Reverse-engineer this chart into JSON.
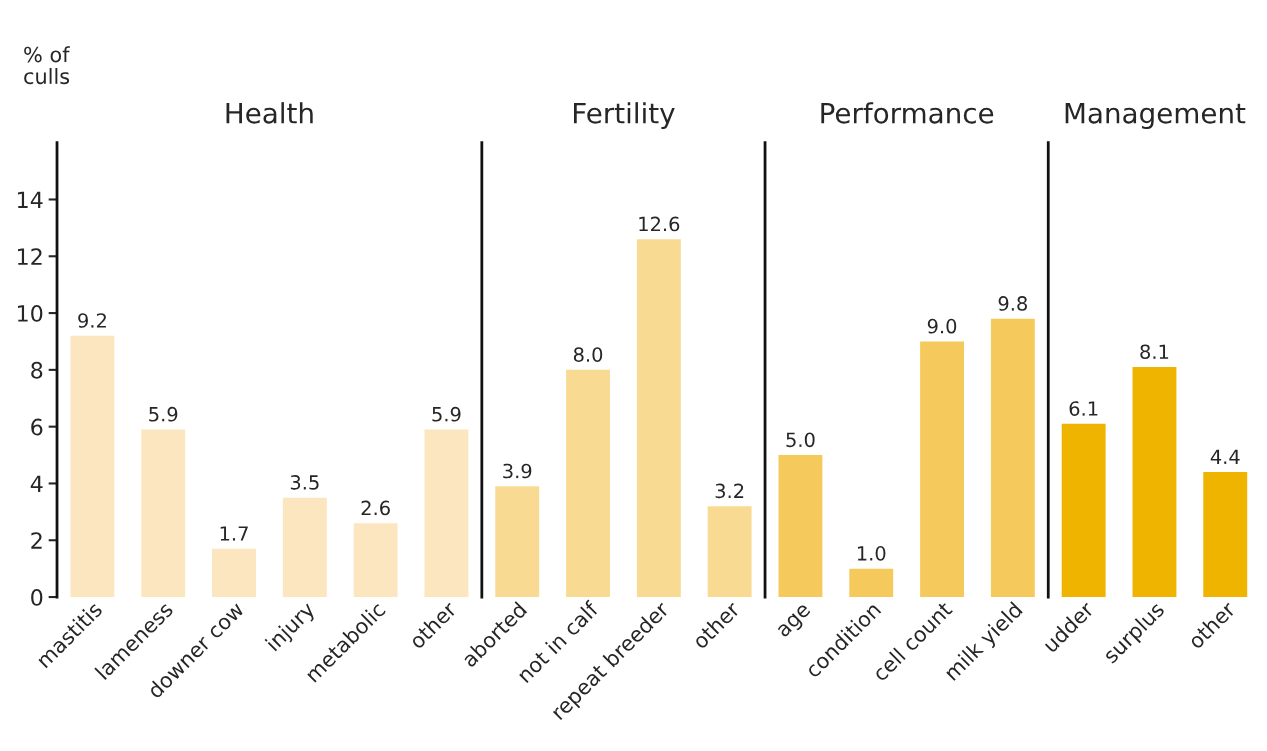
{
  "chart_data": [
    {
      "type": "bar",
      "title": "Health",
      "ylabel": "% of\nculls",
      "categories": [
        "mastitis",
        "lameness",
        "downer cow",
        "injury",
        "metabolic",
        "other"
      ],
      "values": [
        9.2,
        5.9,
        1.7,
        3.5,
        2.6,
        5.9
      ],
      "value_labels": [
        "9.2",
        "5.9",
        "1.7",
        "3.5",
        "2.6",
        "5.9"
      ],
      "color": "#fce6bf",
      "ylim": [
        0,
        16
      ],
      "yticks": [
        0,
        2,
        4,
        6,
        8,
        10,
        12,
        14
      ],
      "grid": false
    },
    {
      "type": "bar",
      "title": "Fertility",
      "categories": [
        "aborted",
        "not in calf",
        "repeat breeder",
        "other"
      ],
      "values": [
        3.9,
        8,
        12.6,
        3.2
      ],
      "value_labels": [
        "3.9",
        "8.0",
        "12.6",
        "3.2"
      ],
      "color": "#f8da92",
      "ylim": [
        0,
        16
      ],
      "tick_labels": "x",
      "grid": false
    },
    {
      "type": "bar",
      "title": "Performance",
      "categories": [
        "age",
        "condition",
        "cell count",
        "milk yield"
      ],
      "values": [
        5,
        1,
        9,
        9.8
      ],
      "value_labels": [
        "5.0",
        "1.0",
        "9.0",
        "9.8"
      ],
      "color": "#f5c95c",
      "ylim": [
        0,
        16
      ],
      "tick_labels": "x",
      "grid": false
    },
    {
      "type": "bar",
      "title": "Management",
      "categories": [
        "udder",
        "surplus",
        "other"
      ],
      "values": [
        6.1,
        8.1,
        4.4
      ],
      "value_labels": [
        "6.1",
        "8.1",
        "4.4"
      ],
      "color": "#efb400",
      "ylim": [
        0,
        16
      ],
      "tick_labels": "x",
      "grid": false
    }
  ]
}
